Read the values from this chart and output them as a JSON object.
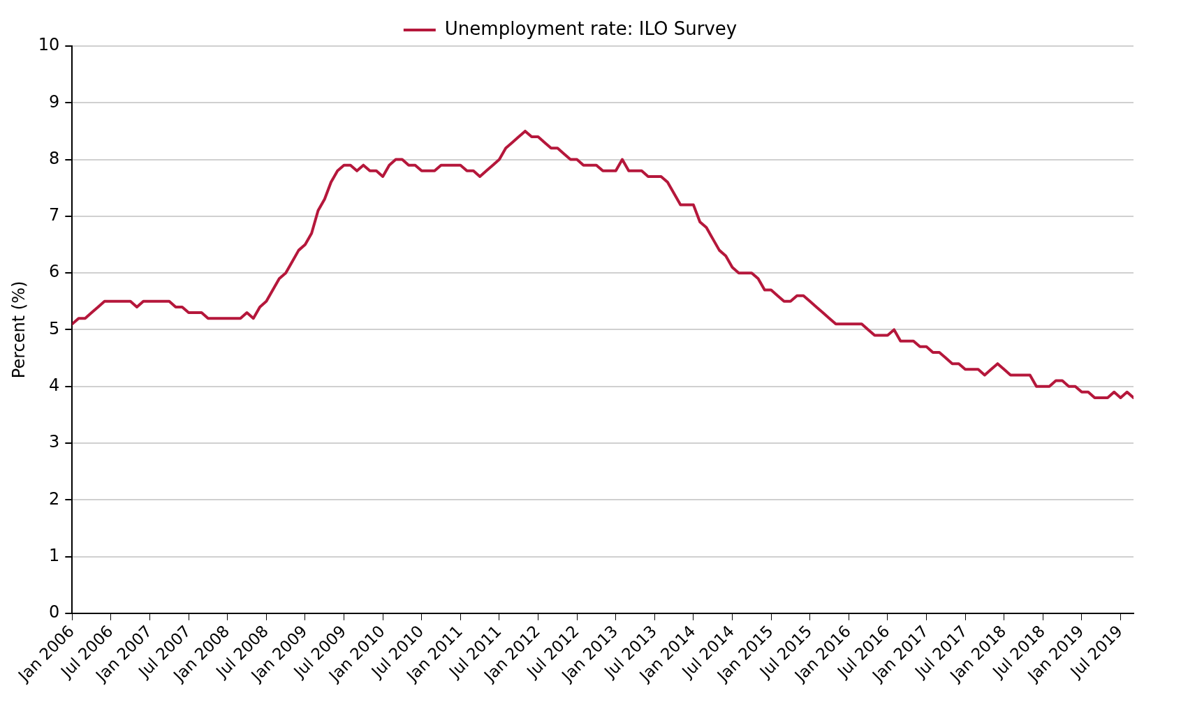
{
  "chart_data": {
    "type": "line",
    "ylabel": "Percent (%)",
    "legend": "top",
    "grid": "y",
    "marker": "none",
    "line_style": "solid",
    "xlim": [
      "2006-01",
      "2019-09"
    ],
    "xticks": [
      {
        "value": "2006-01",
        "label": "Jan 2006"
      },
      {
        "value": "2006-07",
        "label": "Jul 2006"
      },
      {
        "value": "2007-01",
        "label": "Jan 2007"
      },
      {
        "value": "2007-07",
        "label": "Jul 2007"
      },
      {
        "value": "2008-01",
        "label": "Jan 2008"
      },
      {
        "value": "2008-07",
        "label": "Jul 2008"
      },
      {
        "value": "2009-01",
        "label": "Jan 2009"
      },
      {
        "value": "2009-07",
        "label": "Jul 2009"
      },
      {
        "value": "2010-01",
        "label": "Jan 2010"
      },
      {
        "value": "2010-07",
        "label": "Jul 2010"
      },
      {
        "value": "2011-01",
        "label": "Jan 2011"
      },
      {
        "value": "2011-07",
        "label": "Jul 2011"
      },
      {
        "value": "2012-01",
        "label": "Jan 2012"
      },
      {
        "value": "2012-07",
        "label": "Jul 2012"
      },
      {
        "value": "2013-01",
        "label": "Jan 2013"
      },
      {
        "value": "2013-07",
        "label": "Jul 2013"
      },
      {
        "value": "2014-01",
        "label": "Jan 2014"
      },
      {
        "value": "2014-07",
        "label": "Jul 2014"
      },
      {
        "value": "2015-01",
        "label": "Jan 2015"
      },
      {
        "value": "2015-07",
        "label": "Jul 2015"
      },
      {
        "value": "2016-01",
        "label": "Jan 2016"
      },
      {
        "value": "2016-07",
        "label": "Jul 2016"
      },
      {
        "value": "2017-01",
        "label": "Jan 2017"
      },
      {
        "value": "2017-07",
        "label": "Jul 2017"
      },
      {
        "value": "2018-01",
        "label": "Jan 2018"
      },
      {
        "value": "2018-07",
        "label": "Jul 2018"
      },
      {
        "value": "2019-01",
        "label": "Jan 2019"
      },
      {
        "value": "2019-07",
        "label": "Jul 2019"
      }
    ],
    "ylim": [
      0,
      10
    ],
    "yticks": [
      0,
      1,
      2,
      3,
      4,
      5,
      6,
      7,
      8,
      9,
      10
    ],
    "x": [
      "2006-01",
      "2006-02",
      "2006-03",
      "2006-04",
      "2006-05",
      "2006-06",
      "2006-07",
      "2006-08",
      "2006-09",
      "2006-10",
      "2006-11",
      "2006-12",
      "2007-01",
      "2007-02",
      "2007-03",
      "2007-04",
      "2007-05",
      "2007-06",
      "2007-07",
      "2007-08",
      "2007-09",
      "2007-10",
      "2007-11",
      "2007-12",
      "2008-01",
      "2008-02",
      "2008-03",
      "2008-04",
      "2008-05",
      "2008-06",
      "2008-07",
      "2008-08",
      "2008-09",
      "2008-10",
      "2008-11",
      "2008-12",
      "2009-01",
      "2009-02",
      "2009-03",
      "2009-04",
      "2009-05",
      "2009-06",
      "2009-07",
      "2009-08",
      "2009-09",
      "2009-10",
      "2009-11",
      "2009-12",
      "2010-01",
      "2010-02",
      "2010-03",
      "2010-04",
      "2010-05",
      "2010-06",
      "2010-07",
      "2010-08",
      "2010-09",
      "2010-10",
      "2010-11",
      "2010-12",
      "2011-01",
      "2011-02",
      "2011-03",
      "2011-04",
      "2011-05",
      "2011-06",
      "2011-07",
      "2011-08",
      "2011-09",
      "2011-10",
      "2011-11",
      "2011-12",
      "2012-01",
      "2012-02",
      "2012-03",
      "2012-04",
      "2012-05",
      "2012-06",
      "2012-07",
      "2012-08",
      "2012-09",
      "2012-10",
      "2012-11",
      "2012-12",
      "2013-01",
      "2013-02",
      "2013-03",
      "2013-04",
      "2013-05",
      "2013-06",
      "2013-07",
      "2013-08",
      "2013-09",
      "2013-10",
      "2013-11",
      "2013-12",
      "2014-01",
      "2014-02",
      "2014-03",
      "2014-04",
      "2014-05",
      "2014-06",
      "2014-07",
      "2014-08",
      "2014-09",
      "2014-10",
      "2014-11",
      "2014-12",
      "2015-01",
      "2015-02",
      "2015-03",
      "2015-04",
      "2015-05",
      "2015-06",
      "2015-07",
      "2015-08",
      "2015-09",
      "2015-10",
      "2015-11",
      "2015-12",
      "2016-01",
      "2016-02",
      "2016-03",
      "2016-04",
      "2016-05",
      "2016-06",
      "2016-07",
      "2016-08",
      "2016-09",
      "2016-10",
      "2016-11",
      "2016-12",
      "2017-01",
      "2017-02",
      "2017-03",
      "2017-04",
      "2017-05",
      "2017-06",
      "2017-07",
      "2017-08",
      "2017-09",
      "2017-10",
      "2017-11",
      "2017-12",
      "2018-01",
      "2018-02",
      "2018-03",
      "2018-04",
      "2018-05",
      "2018-06",
      "2018-07",
      "2018-08",
      "2018-09",
      "2018-10",
      "2018-11",
      "2018-12",
      "2019-01",
      "2019-02",
      "2019-03",
      "2019-04",
      "2019-05",
      "2019-06",
      "2019-07",
      "2019-08",
      "2019-09"
    ],
    "series": [
      {
        "name": "Unemployment rate: ILO Survey",
        "color": "#b5173b",
        "values": [
          5.1,
          5.2,
          5.2,
          5.3,
          5.4,
          5.5,
          5.5,
          5.5,
          5.5,
          5.5,
          5.4,
          5.5,
          5.5,
          5.5,
          5.5,
          5.5,
          5.4,
          5.4,
          5.3,
          5.3,
          5.3,
          5.2,
          5.2,
          5.2,
          5.2,
          5.2,
          5.2,
          5.3,
          5.2,
          5.4,
          5.5,
          5.7,
          5.9,
          6.0,
          6.2,
          6.4,
          6.5,
          6.7,
          7.1,
          7.3,
          7.6,
          7.8,
          7.9,
          7.9,
          7.8,
          7.9,
          7.8,
          7.8,
          7.7,
          7.9,
          8.0,
          8.0,
          7.9,
          7.9,
          7.8,
          7.8,
          7.8,
          7.9,
          7.9,
          7.9,
          7.9,
          7.8,
          7.8,
          7.7,
          7.8,
          7.9,
          8.0,
          8.2,
          8.3,
          8.4,
          8.5,
          8.4,
          8.4,
          8.3,
          8.2,
          8.2,
          8.1,
          8.0,
          8.0,
          7.9,
          7.9,
          7.9,
          7.8,
          7.8,
          7.8,
          8.0,
          7.8,
          7.8,
          7.8,
          7.7,
          7.7,
          7.7,
          7.6,
          7.4,
          7.2,
          7.2,
          7.2,
          6.9,
          6.8,
          6.6,
          6.4,
          6.3,
          6.1,
          6.0,
          6.0,
          6.0,
          5.9,
          5.7,
          5.7,
          5.6,
          5.5,
          5.5,
          5.6,
          5.6,
          5.5,
          5.4,
          5.3,
          5.2,
          5.1,
          5.1,
          5.1,
          5.1,
          5.1,
          5.0,
          4.9,
          4.9,
          4.9,
          5.0,
          4.8,
          4.8,
          4.8,
          4.7,
          4.7,
          4.6,
          4.6,
          4.5,
          4.4,
          4.4,
          4.3,
          4.3,
          4.3,
          4.2,
          4.3,
          4.4,
          4.3,
          4.2,
          4.2,
          4.2,
          4.2,
          4.0,
          4.0,
          4.0,
          4.1,
          4.1,
          4.0,
          4.0,
          3.9,
          3.9,
          3.8,
          3.8,
          3.8,
          3.9,
          3.8,
          3.9,
          3.8
        ]
      }
    ]
  }
}
